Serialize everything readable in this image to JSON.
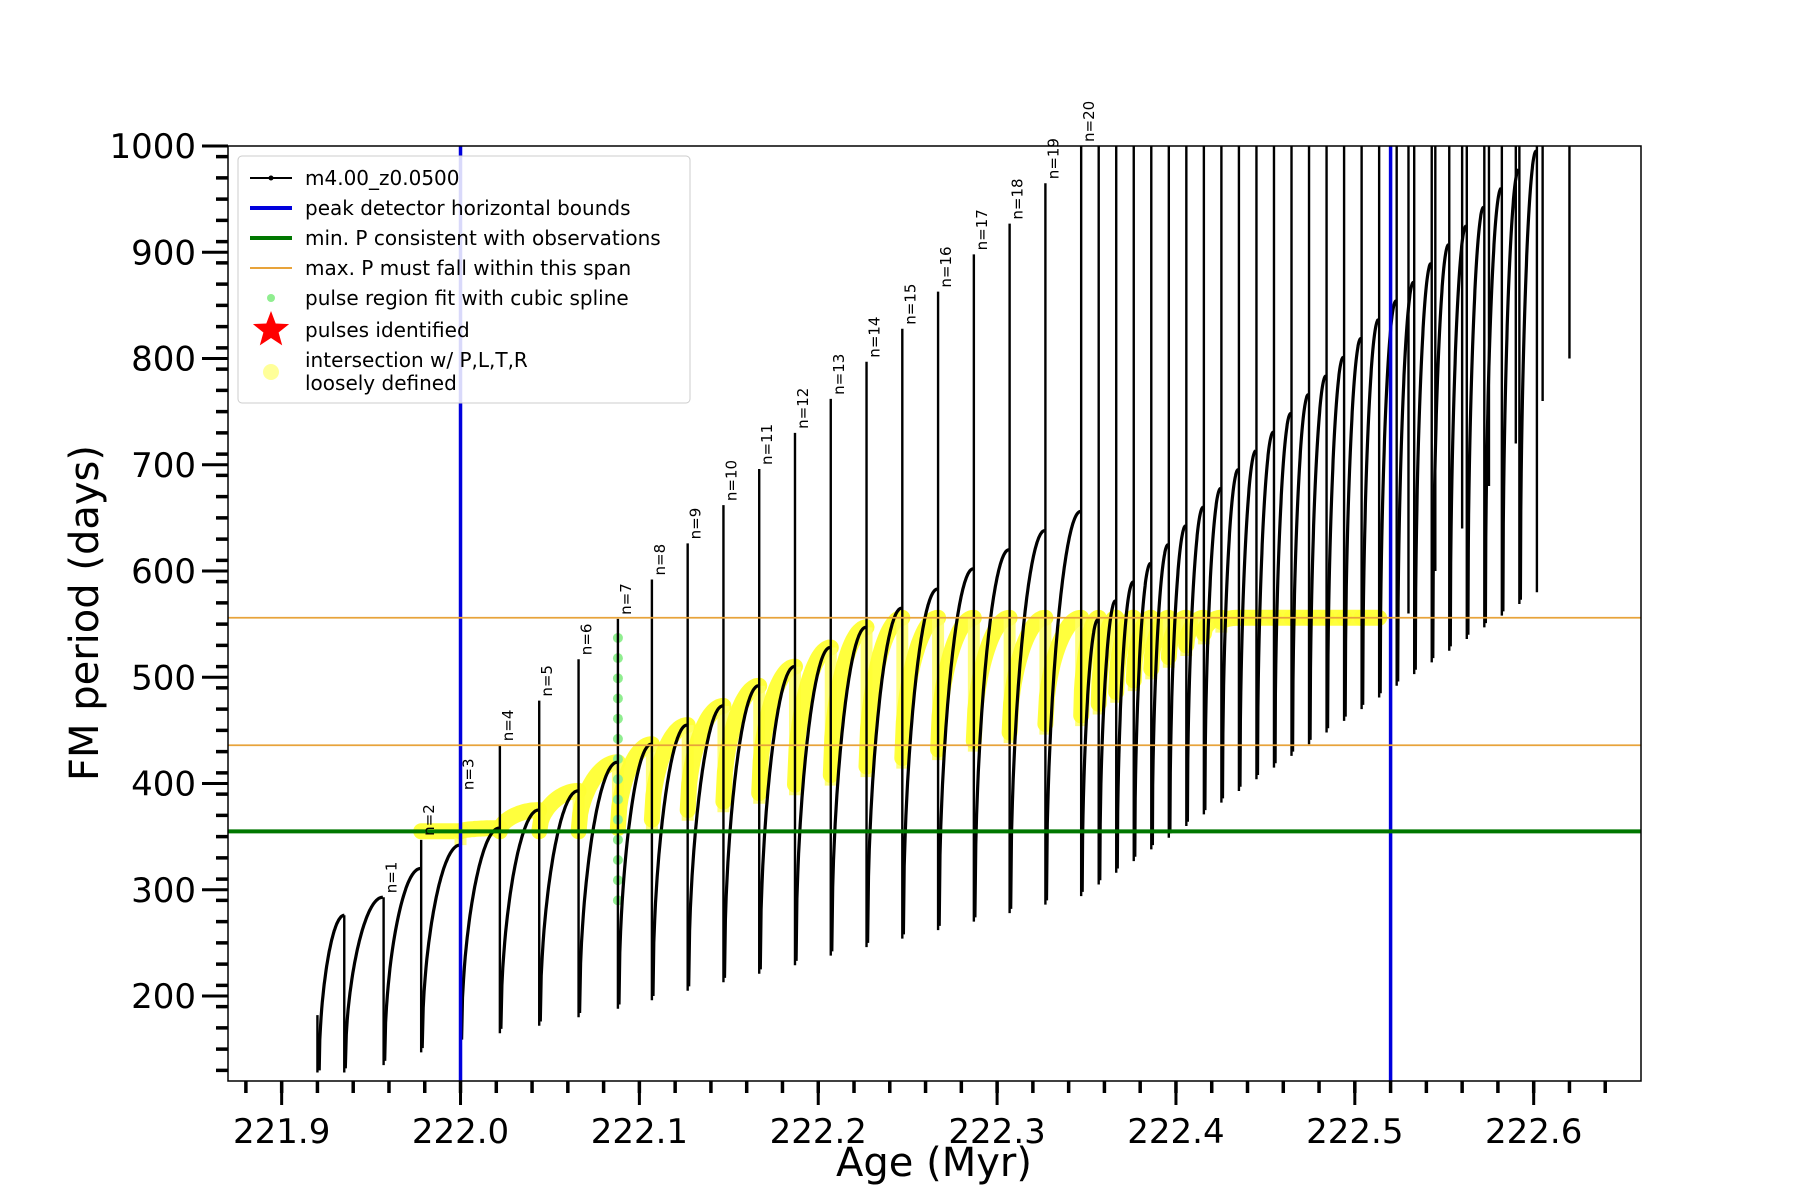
{
  "chart_data": {
    "type": "line",
    "title": "",
    "xlabel": "Age (Myr)",
    "ylabel": "FM period (days)",
    "xlim": [
      221.87,
      222.66
    ],
    "ylim": [
      120,
      1000
    ],
    "x_ticks": [
      221.9,
      222.0,
      222.1,
      222.2,
      222.3,
      222.4,
      222.5,
      222.6
    ],
    "x_tick_labels": [
      "221.9",
      "222.0",
      "222.1",
      "222.2",
      "222.3",
      "222.4",
      "222.5",
      "222.6"
    ],
    "y_ticks": [
      200,
      300,
      400,
      500,
      600,
      700,
      800,
      900,
      1000
    ],
    "y_tick_labels": [
      "200",
      "300",
      "400",
      "500",
      "600",
      "700",
      "800",
      "900",
      "1000"
    ],
    "grid": false,
    "legend_position": "top-left",
    "legend": [
      {
        "label": "m4.00_z0.0500",
        "style": "line-dot",
        "color": "#000000"
      },
      {
        "label": "peak detector horizontal bounds",
        "style": "line",
        "color": "#0000dd"
      },
      {
        "label": "min. P consistent with observations",
        "style": "line",
        "color": "#007700"
      },
      {
        "label": "max. P must fall within this span",
        "style": "line",
        "color": "#e8a33a"
      },
      {
        "label": "pulse region fit with cubic spline",
        "style": "dot",
        "color": "#90ee90"
      },
      {
        "label": "pulses identified",
        "style": "star",
        "color": "#ff0000"
      },
      {
        "label": "intersection w/ P,L,T,R",
        "label2": "loosely defined",
        "style": "dot-large",
        "color": "#ffff99"
      }
    ],
    "reference_lines": {
      "vertical_blue": [
        222.0,
        222.52
      ],
      "horizontal_green": 355,
      "horizontal_orange": [
        436,
        556
      ]
    },
    "series_name": "m4.00_z0.0500",
    "pulses": [
      {
        "label": "n=1",
        "age": 221.957,
        "p_start": 135,
        "p_peak": 293,
        "p_label": 293
      },
      {
        "label": "n=2",
        "age": 221.978,
        "p_start": 147,
        "p_peak": 320,
        "p_label": 347
      },
      {
        "label": "n=3",
        "age": 222.0,
        "p_start": 155,
        "p_peak": 342,
        "p_label": 390
      },
      {
        "label": "n=4",
        "age": 222.022,
        "p_start": 165,
        "p_peak": 358,
        "p_label": 436
      },
      {
        "label": "n=5",
        "age": 222.044,
        "p_start": 172,
        "p_peak": 375,
        "p_label": 478
      },
      {
        "label": "n=6",
        "age": 222.066,
        "p_start": 180,
        "p_peak": 393,
        "p_label": 517
      },
      {
        "label": "n=7",
        "age": 222.088,
        "p_start": 188,
        "p_peak": 420,
        "p_label": 555
      },
      {
        "label": "n=8",
        "age": 222.107,
        "p_start": 196,
        "p_peak": 437,
        "p_label": 592
      },
      {
        "label": "n=9",
        "age": 222.127,
        "p_start": 205,
        "p_peak": 455,
        "p_label": 626
      },
      {
        "label": "n=10",
        "age": 222.147,
        "p_start": 213,
        "p_peak": 473,
        "p_label": 662
      },
      {
        "label": "n=11",
        "age": 222.167,
        "p_start": 221,
        "p_peak": 492,
        "p_label": 696
      },
      {
        "label": "n=12",
        "age": 222.187,
        "p_start": 229,
        "p_peak": 510,
        "p_label": 730
      },
      {
        "label": "n=13",
        "age": 222.207,
        "p_start": 238,
        "p_peak": 528,
        "p_label": 762
      },
      {
        "label": "n=14",
        "age": 222.227,
        "p_start": 246,
        "p_peak": 547,
        "p_label": 797
      },
      {
        "label": "n=15",
        "age": 222.247,
        "p_start": 254,
        "p_peak": 565,
        "p_label": 828
      },
      {
        "label": "n=16",
        "age": 222.267,
        "p_start": 262,
        "p_peak": 583,
        "p_label": 863
      },
      {
        "label": "n=17",
        "age": 222.287,
        "p_start": 270,
        "p_peak": 602,
        "p_label": 898
      },
      {
        "label": "n=18",
        "age": 222.307,
        "p_start": 278,
        "p_peak": 620,
        "p_label": 927
      },
      {
        "label": "n=19",
        "age": 222.327,
        "p_start": 286,
        "p_peak": 638,
        "p_label": 965
      },
      {
        "label": "n=20",
        "age": 222.347,
        "p_start": 294,
        "p_peak": 656,
        "p_label": 1000
      }
    ]
  }
}
